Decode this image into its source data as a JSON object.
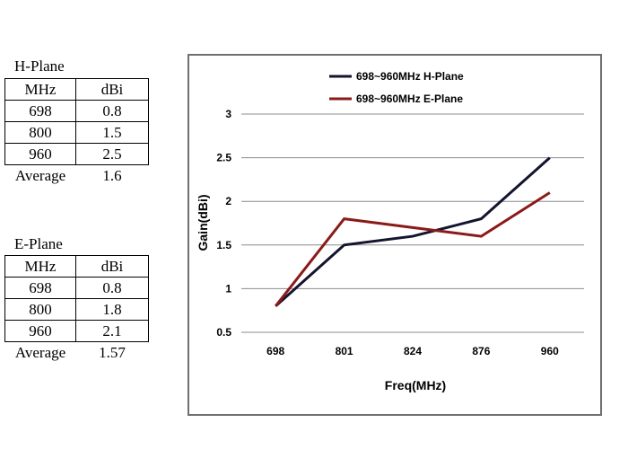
{
  "tables": [
    {
      "title": "H-Plane",
      "headers": [
        "MHz",
        "dBi"
      ],
      "rows": [
        [
          "698",
          "0.8"
        ],
        [
          "800",
          "1.5"
        ],
        [
          "960",
          "2.5"
        ]
      ],
      "average_label": "Average",
      "average_value": "1.6"
    },
    {
      "title": "E-Plane",
      "headers": [
        "MHz",
        "dBi"
      ],
      "rows": [
        [
          "698",
          "0.8"
        ],
        [
          "800",
          "1.8"
        ],
        [
          "960",
          "2.1"
        ]
      ],
      "average_label": "Average",
      "average_value": "1.57"
    }
  ],
  "chart_data": {
    "type": "line",
    "categories": [
      "698",
      "801",
      "824",
      "876",
      "960"
    ],
    "series": [
      {
        "name": "698~960MHz H-Plane",
        "color": "#14142e",
        "values": [
          0.8,
          1.5,
          1.6,
          1.8,
          2.5
        ]
      },
      {
        "name": "698~960MHz E-Plane",
        "color": "#8b1a1a",
        "values": [
          0.8,
          1.8,
          1.7,
          1.6,
          2.1
        ]
      }
    ],
    "xlabel": "Freq(MHz)",
    "ylabel": "Gain(dBi)",
    "ylim": [
      0.5,
      3
    ],
    "yticks": [
      "0.5",
      "1",
      "1.5",
      "2",
      "2.5",
      "3"
    ],
    "grid": "horizontal",
    "legend_position": "top"
  }
}
